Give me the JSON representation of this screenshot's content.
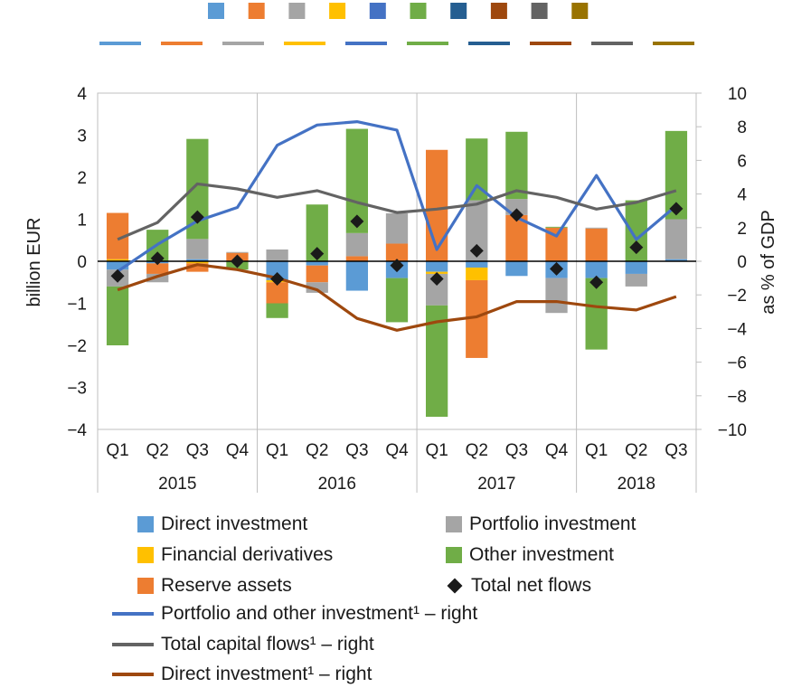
{
  "chart_data": {
    "type": "bar",
    "stacked": true,
    "x_groups": [
      {
        "year": "2015",
        "quarters": [
          "Q1",
          "Q2",
          "Q3",
          "Q4"
        ]
      },
      {
        "year": "2016",
        "quarters": [
          "Q1",
          "Q2",
          "Q3",
          "Q4"
        ]
      },
      {
        "year": "2017",
        "quarters": [
          "Q1",
          "Q2",
          "Q3",
          "Q4"
        ]
      },
      {
        "year": "2018",
        "quarters": [
          "Q1",
          "Q2",
          "Q3"
        ]
      }
    ],
    "left_axis": {
      "label": "billion  EUR",
      "min": -4,
      "max": 4,
      "ticks": [
        "4",
        "3",
        "2",
        "1",
        "0",
        "−1",
        "−2",
        "−3",
        "−4"
      ],
      "tick_values": [
        4,
        3,
        2,
        1,
        0,
        -1,
        -2,
        -3,
        -4
      ]
    },
    "right_axis": {
      "label": "as % of GDP",
      "min": -10,
      "max": 10,
      "ticks": [
        "10",
        "8",
        "6",
        "4",
        "2",
        "0",
        "−2",
        "−4",
        "−6",
        "−8",
        "−10"
      ],
      "tick_values": [
        10,
        8,
        6,
        4,
        2,
        0,
        -2,
        -4,
        -6,
        -8,
        -10
      ]
    },
    "bar_series": [
      {
        "name": "Direct investment",
        "color": "#5b9bd5",
        "values": [
          -0.2,
          -0.05,
          0.05,
          0,
          -0.45,
          -0.1,
          -0.7,
          -0.4,
          -0.25,
          -0.15,
          -0.35,
          -0.4,
          -0.4,
          -0.3,
          0.05
        ]
      },
      {
        "name": "Financial derivatives",
        "color": "#ffc000",
        "values": [
          0.05,
          0,
          -0.05,
          0,
          -0.05,
          0,
          0,
          0,
          -0.05,
          -0.3,
          0,
          0,
          0,
          0,
          0
        ]
      },
      {
        "name": "Reserve assets",
        "color": "#ed7d31",
        "values": [
          1.1,
          -0.25,
          -0.2,
          0.2,
          -0.5,
          -0.4,
          0.12,
          0.42,
          2.65,
          -1.85,
          1.1,
          0.8,
          0.78,
          0,
          0
        ]
      },
      {
        "name": "Portfolio investment",
        "color": "#a5a5a5",
        "values": [
          -0.4,
          -0.2,
          0.48,
          0.02,
          0.28,
          -0.25,
          0.55,
          0.72,
          -0.75,
          1.45,
          0.38,
          -0.83,
          0.02,
          -0.3,
          0.95
        ]
      },
      {
        "name": "Other investment",
        "color": "#70ad47",
        "values": [
          -1.4,
          0.75,
          2.38,
          -0.2,
          -0.35,
          1.35,
          2.48,
          -1.05,
          -2.65,
          1.47,
          1.6,
          0.02,
          -1.7,
          1.45,
          2.1
        ]
      }
    ],
    "total_net_flows": {
      "name": "Total net flows",
      "color": "#1a1a1a",
      "values": [
        -0.35,
        0.07,
        1.05,
        0,
        -0.42,
        0.18,
        0.95,
        -0.1,
        -0.42,
        0.25,
        1.1,
        -0.18,
        -0.5,
        0.33,
        1.25
      ]
    },
    "line_series": [
      {
        "name": "Portfolio and other investment¹ – right",
        "color": "#4472c4",
        "values": [
          -0.6,
          1.0,
          2.4,
          3.2,
          6.9,
          8.1,
          8.3,
          7.8,
          0.7,
          4.5,
          2.6,
          1.5,
          5.1,
          1.3,
          3.3
        ]
      },
      {
        "name": "Total capital flows¹ – right",
        "color": "#636363",
        "values": [
          1.3,
          2.3,
          4.6,
          4.3,
          3.8,
          4.2,
          3.5,
          2.9,
          3.1,
          3.4,
          4.2,
          3.8,
          3.1,
          3.5,
          4.2
        ]
      },
      {
        "name": "Direct investment¹ – right",
        "color": "#9e480e",
        "values": [
          -1.7,
          -0.9,
          -0.2,
          -0.5,
          -1.0,
          -1.7,
          -3.4,
          -4.1,
          -3.6,
          -3.3,
          -2.4,
          -2.4,
          -2.7,
          -2.9,
          -2.1
        ]
      }
    ],
    "legend": {
      "placement": "bottom"
    }
  },
  "top_legend": {
    "squares": [
      "#5b9bd5",
      "#ed7d31",
      "#a5a5a5",
      "#ffc000",
      "#4472c4",
      "#70ad47",
      "#255e91",
      "#9e480e",
      "#636363",
      "#997300"
    ],
    "lines": [
      "#5b9bd5",
      "#ed7d31",
      "#a5a5a5",
      "#ffc000",
      "#4472c4",
      "#70ad47",
      "#255e91",
      "#9e480e",
      "#636363",
      "#997300"
    ]
  },
  "legend": {
    "direct_investment": "Direct investment",
    "portfolio_investment": "Portfolio investment",
    "financial_derivatives": "Financial derivatives",
    "other_investment": "Other investment",
    "reserve_assets": "Reserve assets",
    "total_net_flows": "Total net flows",
    "portfolio_other_line": "Portfolio and other investment¹ – right",
    "total_capital_line": "Total capital flows¹ – right",
    "direct_investment_line": "Direct investment¹ – right"
  }
}
